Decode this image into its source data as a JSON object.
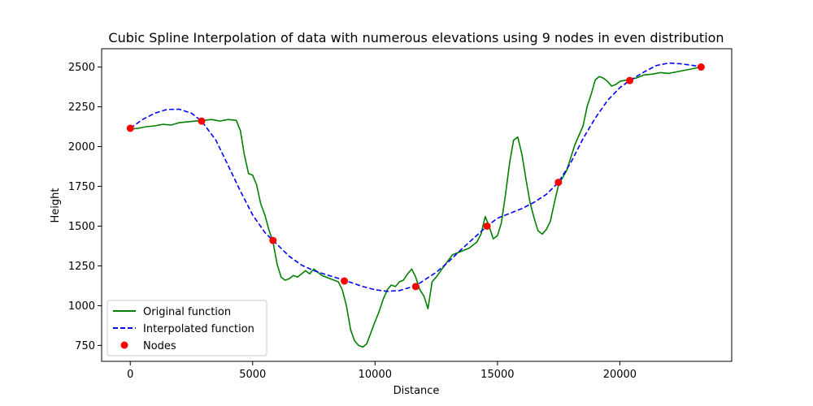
{
  "chart_data": {
    "type": "line",
    "title": "Cubic Spline Interpolation of data with numerous elevations using 9 nodes in even distribution",
    "xlabel": "Distance",
    "ylabel": "Height",
    "xlim": [
      -1170,
      24570
    ],
    "ylim": [
      650,
      2615
    ],
    "xticks": [
      0,
      5000,
      10000,
      15000,
      20000
    ],
    "xtick_labels": [
      "0",
      "5000",
      "10000",
      "15000",
      "20000"
    ],
    "yticks": [
      750,
      1000,
      1250,
      1500,
      1750,
      2000,
      2250,
      2500
    ],
    "ytick_labels": [
      "750",
      "1000",
      "1250",
      "1500",
      "1750",
      "2000",
      "2250",
      "2500"
    ],
    "grid": false,
    "legend_position": "lower-left",
    "legend": [
      {
        "label": "Original function",
        "style": "solid-line",
        "color": "#008000"
      },
      {
        "label": "Interpolated function",
        "style": "dashed-line",
        "color": "#0000ff"
      },
      {
        "label": "Nodes",
        "style": "marker",
        "color": "#ff0000"
      }
    ],
    "series": [
      {
        "name": "Original function",
        "color": "#008000",
        "style": "solid",
        "x": [
          0,
          330,
          660,
          1000,
          1330,
          1660,
          2000,
          2330,
          2660,
          3000,
          3330,
          3660,
          4000,
          4330,
          4500,
          4660,
          4830,
          5000,
          5160,
          5330,
          5500,
          5660,
          5830,
          6000,
          6160,
          6330,
          6500,
          6660,
          6830,
          7000,
          7160,
          7330,
          7500,
          7660,
          7830,
          8000,
          8160,
          8330,
          8500,
          8660,
          8830,
          9000,
          9160,
          9330,
          9500,
          9660,
          9830,
          10000,
          10160,
          10330,
          10500,
          10660,
          10830,
          11000,
          11160,
          11330,
          11500,
          11660,
          11830,
          12000,
          12160,
          12330,
          12500,
          12830,
          13160,
          13500,
          13830,
          14160,
          14330,
          14500,
          14660,
          14830,
          15000,
          15160,
          15330,
          15500,
          15660,
          15830,
          16000,
          16160,
          16330,
          16500,
          16660,
          16830,
          17000,
          17160,
          17330,
          17500,
          17830,
          18160,
          18500,
          18660,
          18830,
          19000,
          19160,
          19330,
          19500,
          19660,
          19830,
          20000,
          20330,
          20660,
          21000,
          21330,
          21660,
          22000,
          22330,
          22660,
          23000,
          23300
        ],
        "y": [
          2110,
          2115,
          2125,
          2130,
          2140,
          2135,
          2150,
          2155,
          2160,
          2165,
          2170,
          2160,
          2170,
          2165,
          2100,
          1950,
          1830,
          1820,
          1760,
          1640,
          1570,
          1480,
          1400,
          1260,
          1180,
          1160,
          1170,
          1190,
          1180,
          1200,
          1220,
          1200,
          1230,
          1210,
          1190,
          1180,
          1170,
          1160,
          1150,
          1100,
          1000,
          850,
          780,
          750,
          740,
          760,
          830,
          900,
          960,
          1040,
          1100,
          1130,
          1120,
          1150,
          1160,
          1200,
          1230,
          1180,
          1100,
          1060,
          980,
          1150,
          1180,
          1250,
          1320,
          1340,
          1360,
          1400,
          1450,
          1560,
          1500,
          1420,
          1440,
          1520,
          1700,
          1900,
          2040,
          2060,
          1950,
          1800,
          1650,
          1550,
          1470,
          1450,
          1480,
          1530,
          1650,
          1760,
          1850,
          2010,
          2130,
          2250,
          2330,
          2420,
          2440,
          2430,
          2410,
          2380,
          2390,
          2410,
          2420,
          2430,
          2450,
          2455,
          2465,
          2460,
          2470,
          2480,
          2490,
          2500
        ]
      },
      {
        "name": "Interpolated function",
        "color": "#0000ff",
        "style": "dashed",
        "x": [
          0,
          500,
          1000,
          1500,
          2000,
          2500,
          2915,
          3500,
          4000,
          4500,
          5000,
          5500,
          5830,
          6500,
          7000,
          7500,
          8000,
          8745,
          9500,
          10000,
          10500,
          11000,
          11660,
          12500,
          13000,
          13500,
          14000,
          14575,
          15000,
          15500,
          16000,
          16500,
          17000,
          17490,
          18000,
          18500,
          19000,
          19500,
          20000,
          20405,
          21000,
          21500,
          22000,
          22500,
          23000,
          23320
        ],
        "y": [
          2115,
          2170,
          2210,
          2233,
          2235,
          2210,
          2160,
          2040,
          1880,
          1720,
          1570,
          1460,
          1410,
          1310,
          1255,
          1220,
          1195,
          1160,
          1120,
          1100,
          1090,
          1095,
          1125,
          1210,
          1275,
          1350,
          1420,
          1500,
          1550,
          1580,
          1610,
          1650,
          1700,
          1775,
          1900,
          2050,
          2180,
          2290,
          2370,
          2415,
          2470,
          2510,
          2525,
          2520,
          2510,
          2500
        ]
      },
      {
        "name": "Nodes",
        "color": "#ff0000",
        "style": "markers",
        "x": [
          0,
          2915,
          5830,
          8745,
          11660,
          14575,
          17490,
          20405,
          23320
        ],
        "y": [
          2115,
          2160,
          1410,
          1155,
          1120,
          1500,
          1775,
          2415,
          2500
        ]
      }
    ]
  }
}
